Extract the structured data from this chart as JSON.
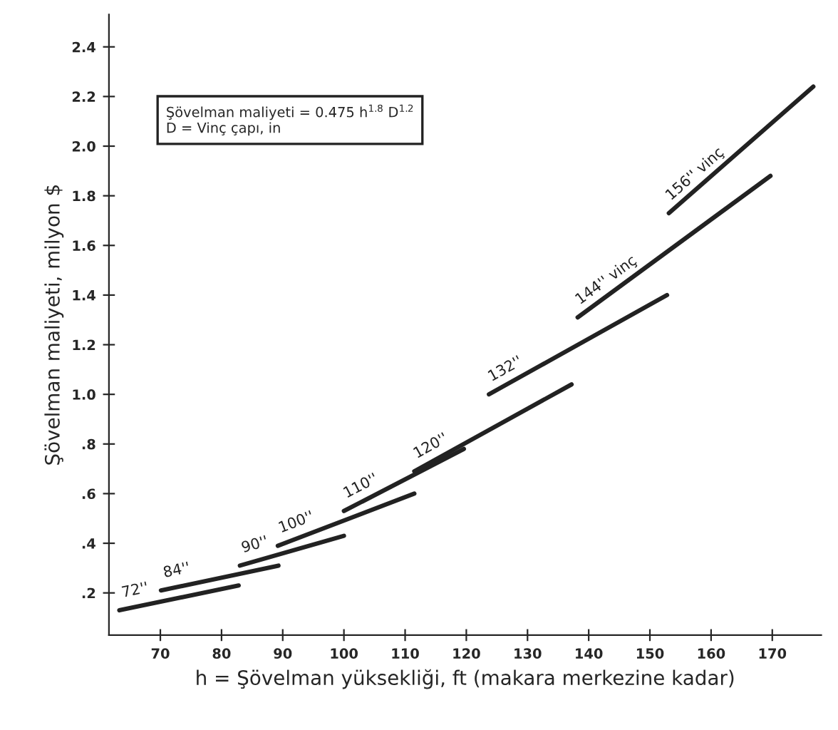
{
  "chart_data": {
    "type": "line",
    "xlabel": "h = Şövelman yüksekliği, ft (makara merkezine kadar)",
    "ylabel": "Şövelman maliyeti, milyon $",
    "annotations": [
      "Şövelman maliyeti = 0.475 h$^{1.8}$ D$^{1.2}$\nD = Vinç çapı, in"
    ],
    "xlim": [
      61.6,
      178
    ],
    "xticks": [
      70,
      80,
      90,
      100,
      110,
      120,
      130,
      140,
      150,
      160,
      170
    ],
    "ylim": [
      0.03,
      2.53
    ],
    "yticks": [
      {
        "value": 0.2,
        "label": ".2"
      },
      {
        "value": 0.4,
        "label": ".4"
      },
      {
        "value": 0.6,
        "label": ".6"
      },
      {
        "value": 0.8,
        "label": ".8"
      },
      {
        "value": 1.0,
        "label": "1.0"
      },
      {
        "value": 1.2,
        "label": "1.2"
      },
      {
        "value": 1.4,
        "label": "1.4"
      },
      {
        "value": 1.6,
        "label": "1.6"
      },
      {
        "value": 1.8,
        "label": "1.8"
      },
      {
        "value": 2.0,
        "label": "2.0"
      },
      {
        "value": 2.2,
        "label": "2.2"
      },
      {
        "value": 2.4,
        "label": "2.4"
      }
    ],
    "grid": false,
    "legend": false,
    "marker": "none",
    "line_style": "solid",
    "series": [
      {
        "name": "72''",
        "color": "#222222",
        "x": [
          63.3,
          82.8
        ],
        "values": [
          0.13,
          0.23
        ]
      },
      {
        "name": "84''",
        "color": "#222222",
        "x": [
          70.1,
          89.3
        ],
        "values": [
          0.21,
          0.31
        ]
      },
      {
        "name": "90''",
        "color": "#222222",
        "x": [
          83.0,
          100.0
        ],
        "values": [
          0.31,
          0.43
        ]
      },
      {
        "name": "100''",
        "color": "#222222",
        "x": [
          89.2,
          111.5
        ],
        "values": [
          0.39,
          0.6
        ]
      },
      {
        "name": "110''",
        "color": "#222222",
        "x": [
          100.0,
          119.6
        ],
        "values": [
          0.53,
          0.78
        ]
      },
      {
        "name": "120''",
        "color": "#222222",
        "x": [
          111.5,
          137.2
        ],
        "values": [
          0.69,
          1.04
        ]
      },
      {
        "name": "132''",
        "color": "#222222",
        "x": [
          123.7,
          152.8
        ],
        "values": [
          1.0,
          1.4
        ]
      },
      {
        "name": "144'' vinç",
        "color": "#222222",
        "x": [
          138.2,
          169.7
        ],
        "values": [
          1.31,
          1.88
        ]
      },
      {
        "name": "156'' vinç",
        "color": "#222222",
        "x": [
          153.1,
          176.7
        ],
        "values": [
          1.73,
          2.24
        ]
      }
    ]
  }
}
